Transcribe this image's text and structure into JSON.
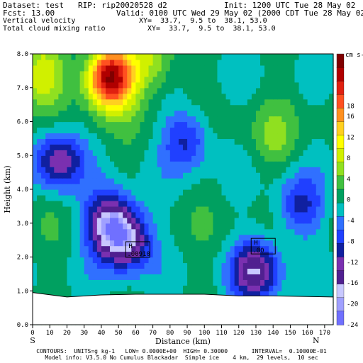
{
  "header": {
    "dataset_line": "Dataset: test   RIP: rip20020528 d2",
    "init_line": "Init: 1200 UTC Tue 28 May 02",
    "fcst_label": "Fcst:",
    "fcst_value": "13.00",
    "valid_line": "Valid: 0100 UTC Wed 29 May 02 (2000 CDT Tue 28 May 02)",
    "field1": "Vertical velocity",
    "xy1": "XY=  33.7,  9.5 to  38.1, 53.0",
    "field2": "Total cloud mixing ratio",
    "xy2": "XY=  33.7,  9.5 to  38.1, 53.0"
  },
  "footer": {
    "contours": "CONTOURS:  UNITS=g kg-1   LOW= 0.0000E+00  HIGH= 0.30000       INTERVAL=  0.10000E-01",
    "model_info": "Model info: V3.5.0 No Cumulus Blackadar  Simple ice    4 km,  29 levels,  10 sec"
  },
  "colors": {
    "ground": "#ffffff",
    "terrain_line": "#000000",
    "palette": [
      "#7070ff",
      "#a0a0ff",
      "#c8c8ff",
      "#502090",
      "#7a30b0",
      "#1020a0",
      "#2040ff",
      "#3070ff",
      "#00c0c0",
      "#00a060",
      "#40c040",
      "#90e020",
      "#d0f000",
      "#ffff00",
      "#ffd020",
      "#ff9020",
      "#ff5020",
      "#e02010",
      "#b00000",
      "#800000"
    ]
  },
  "chart_data": {
    "type": "heatmap",
    "xlabel": "Distance (km)",
    "ylabel": "Height (km)",
    "xlim": [
      0,
      175
    ],
    "ylim": [
      0,
      8
    ],
    "x_ticks": [
      0,
      10,
      20,
      30,
      40,
      50,
      60,
      70,
      80,
      90,
      100,
      110,
      120,
      130,
      140,
      150,
      160,
      170
    ],
    "y_ticks": [
      "0.0",
      "1.0",
      "2.0",
      "3.0",
      "4.0",
      "5.0",
      "6.0",
      "7.0",
      "8.0"
    ],
    "x_start_label": "S",
    "x_end_label": "N",
    "colorbar_unit": "cm s-1",
    "colorbar_labels": [
      "18",
      "16",
      "12",
      "8",
      "4",
      "0",
      "-4",
      "-8",
      "-12",
      "-16",
      "-20",
      "-24"
    ],
    "colorbar_values": [
      18,
      16,
      12,
      8,
      4,
      0,
      -4,
      -8,
      -12,
      -16,
      -20,
      -24
    ],
    "annotations": [
      {
        "tag": "H",
        "value": ".00910",
        "x": 60,
        "y": 2.2
      },
      {
        "tag": "H",
        "value": ".00",
        "x": 133,
        "y": 2.3
      }
    ],
    "terrain_km": [
      [
        0,
        0.95
      ],
      [
        20,
        0.82
      ],
      [
        40,
        0.88
      ],
      [
        60,
        0.9
      ],
      [
        80,
        0.9
      ],
      [
        100,
        0.9
      ],
      [
        120,
        0.85
      ],
      [
        140,
        0.85
      ],
      [
        175,
        0.82
      ]
    ],
    "field_centers_cm_s": [
      {
        "x": 5,
        "y": 7.4,
        "w": 10
      },
      {
        "x": 45,
        "y": 7.3,
        "w": 28
      },
      {
        "x": 45,
        "y": 3.0,
        "w": -18
      },
      {
        "x": 55,
        "y": 2.5,
        "w": -16
      },
      {
        "x": 15,
        "y": 4.9,
        "w": -14
      },
      {
        "x": 90,
        "y": 5.5,
        "w": -10
      },
      {
        "x": 130,
        "y": 1.6,
        "w": -16
      },
      {
        "x": 155,
        "y": 3.5,
        "w": -10
      },
      {
        "x": 70,
        "y": 7.8,
        "w": 8
      },
      {
        "x": 140,
        "y": 5.5,
        "w": 4
      }
    ]
  }
}
